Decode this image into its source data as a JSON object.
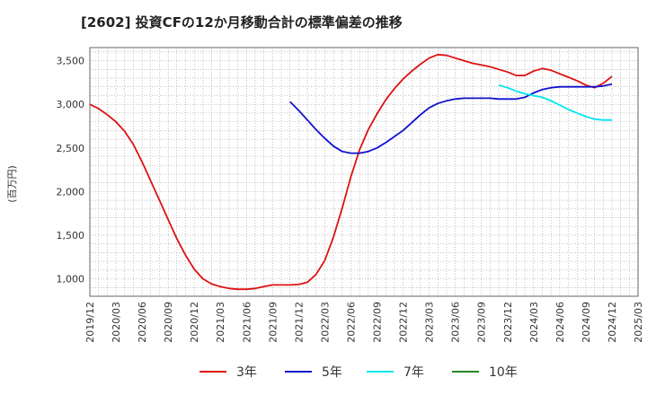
{
  "chart_data": {
    "type": "line",
    "title": "[2602]  投資CFの12か月移動合計の標準偏差の推移",
    "ylabel": "(百万円)",
    "xlabel": "",
    "ylim": [
      800,
      3650
    ],
    "yticks": [
      1000,
      1500,
      2000,
      2500,
      3000,
      3500
    ],
    "ytick_labels": [
      "1,000",
      "1,500",
      "2,000",
      "2,500",
      "3,000",
      "3,500"
    ],
    "xticks": [
      "2019/12",
      "2020/03",
      "2020/06",
      "2020/09",
      "2020/12",
      "2021/03",
      "2021/06",
      "2021/09",
      "2021/12",
      "2022/03",
      "2022/06",
      "2022/09",
      "2022/12",
      "2023/03",
      "2023/06",
      "2023/09",
      "2023/12",
      "2024/03",
      "2024/06",
      "2024/09",
      "2024/12",
      "2025/03"
    ],
    "grid": true,
    "legend_position": "bottom",
    "series": [
      {
        "name": "3年",
        "color": "#dd1111",
        "x": [
          "2019/12",
          "2020/01",
          "2020/02",
          "2020/03",
          "2020/04",
          "2020/05",
          "2020/06",
          "2020/07",
          "2020/08",
          "2020/09",
          "2020/10",
          "2020/11",
          "2020/12",
          "2021/01",
          "2021/02",
          "2021/03",
          "2021/04",
          "2021/05",
          "2021/06",
          "2021/07",
          "2021/08",
          "2021/09",
          "2021/10",
          "2021/11",
          "2021/12",
          "2022/01",
          "2022/02",
          "2022/03",
          "2022/04",
          "2022/05",
          "2022/06",
          "2022/07",
          "2022/08",
          "2022/09",
          "2022/10",
          "2022/11",
          "2022/12",
          "2023/01",
          "2023/02",
          "2023/03",
          "2023/04",
          "2023/05",
          "2023/06",
          "2023/07",
          "2023/08",
          "2023/09",
          "2023/10",
          "2023/11",
          "2023/12",
          "2024/01",
          "2024/02",
          "2024/03",
          "2024/04",
          "2024/05",
          "2024/06",
          "2024/07",
          "2024/08",
          "2024/09",
          "2024/10",
          "2024/11",
          "2024/12"
        ],
        "values": [
          3000,
          2950,
          2880,
          2800,
          2690,
          2540,
          2340,
          2120,
          1900,
          1680,
          1460,
          1270,
          1110,
          1000,
          940,
          910,
          890,
          880,
          880,
          890,
          910,
          930,
          930,
          930,
          935,
          960,
          1050,
          1210,
          1480,
          1810,
          2170,
          2480,
          2710,
          2890,
          3050,
          3180,
          3290,
          3380,
          3460,
          3530,
          3570,
          3560,
          3530,
          3500,
          3470,
          3450,
          3430,
          3400,
          3370,
          3330,
          3330,
          3380,
          3410,
          3390,
          3350,
          3310,
          3270,
          3220,
          3190,
          3240,
          3320
        ]
      },
      {
        "name": "5年",
        "color": "#1111cc",
        "x": [
          "2021/11",
          "2021/12",
          "2022/01",
          "2022/02",
          "2022/03",
          "2022/04",
          "2022/05",
          "2022/06",
          "2022/07",
          "2022/08",
          "2022/09",
          "2022/10",
          "2022/11",
          "2022/12",
          "2023/01",
          "2023/02",
          "2023/03",
          "2023/04",
          "2023/05",
          "2023/06",
          "2023/07",
          "2023/08",
          "2023/09",
          "2023/10",
          "2023/11",
          "2023/12",
          "2024/01",
          "2024/02",
          "2024/03",
          "2024/04",
          "2024/05",
          "2024/06",
          "2024/07",
          "2024/08",
          "2024/09",
          "2024/10",
          "2024/11",
          "2024/12"
        ],
        "values": [
          3030,
          2930,
          2820,
          2710,
          2610,
          2520,
          2460,
          2440,
          2440,
          2460,
          2500,
          2560,
          2630,
          2700,
          2790,
          2880,
          2960,
          3010,
          3040,
          3060,
          3070,
          3070,
          3070,
          3070,
          3060,
          3060,
          3060,
          3080,
          3130,
          3170,
          3190,
          3200,
          3200,
          3200,
          3200,
          3200,
          3210,
          3230
        ]
      },
      {
        "name": "7年",
        "color": "#00e5ee",
        "x": [
          "2023/11",
          "2023/12",
          "2024/01",
          "2024/02",
          "2024/03",
          "2024/04",
          "2024/05",
          "2024/06",
          "2024/07",
          "2024/08",
          "2024/09",
          "2024/10",
          "2024/11",
          "2024/12"
        ],
        "values": [
          3220,
          3190,
          3150,
          3120,
          3100,
          3080,
          3040,
          2990,
          2940,
          2900,
          2860,
          2830,
          2820,
          2820
        ]
      },
      {
        "name": "10年",
        "color": "#228822",
        "x": [],
        "values": []
      }
    ]
  }
}
